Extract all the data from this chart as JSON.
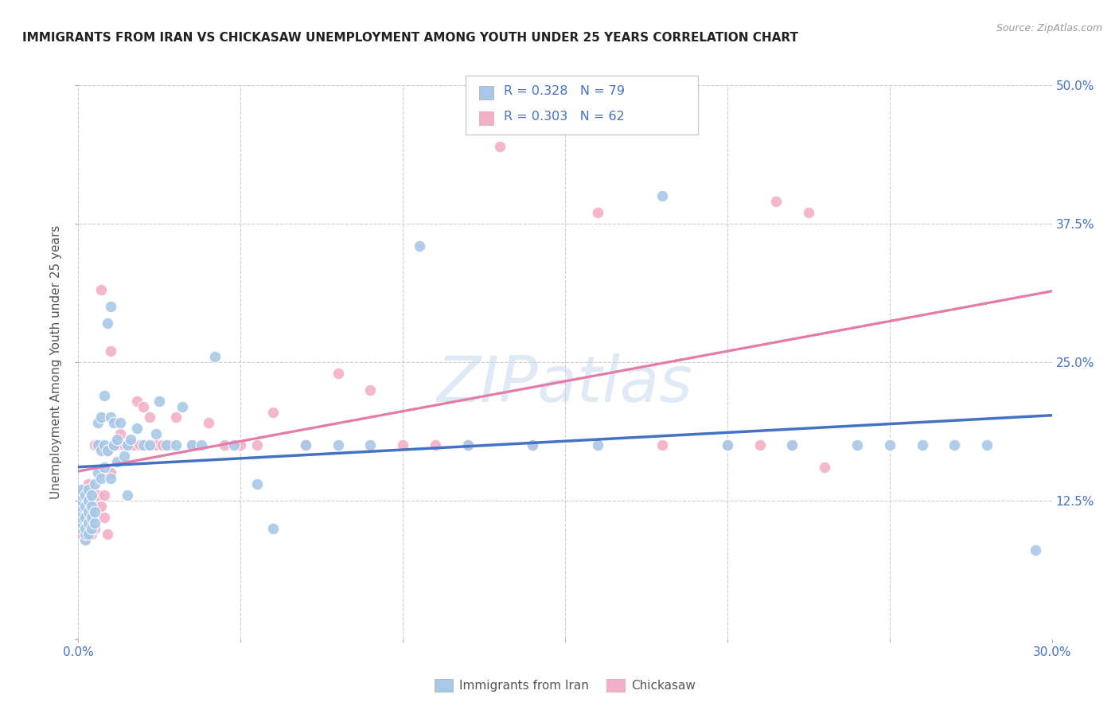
{
  "title": "IMMIGRANTS FROM IRAN VS CHICKASAW UNEMPLOYMENT AMONG YOUTH UNDER 25 YEARS CORRELATION CHART",
  "source": "Source: ZipAtlas.com",
  "ylabel": "Unemployment Among Youth under 25 years",
  "xlim": [
    0.0,
    0.3
  ],
  "ylim": [
    0.0,
    0.5
  ],
  "legend_label1": "R = 0.328   N = 79",
  "legend_label2": "R = 0.303   N = 62",
  "legend_bottom_label1": "Immigrants from Iran",
  "legend_bottom_label2": "Chickasaw",
  "color_blue": "#a8c8e8",
  "color_pink": "#f4afc8",
  "color_blue_text": "#4472c4",
  "trendline_blue": "#4472c4",
  "trendline_dashed": "#bbbbbb",
  "trendline_pink": "#e87aaa",
  "watermark": "ZIPatlas",
  "background_color": "#ffffff",
  "grid_color": "#cccccc",
  "iran_x": [
    0.001,
    0.001,
    0.001,
    0.001,
    0.001,
    0.001,
    0.001,
    0.001,
    0.002,
    0.002,
    0.002,
    0.002,
    0.002,
    0.002,
    0.003,
    0.003,
    0.003,
    0.003,
    0.003,
    0.004,
    0.004,
    0.004,
    0.004,
    0.005,
    0.005,
    0.005,
    0.006,
    0.006,
    0.006,
    0.007,
    0.007,
    0.007,
    0.008,
    0.008,
    0.008,
    0.009,
    0.009,
    0.01,
    0.01,
    0.01,
    0.011,
    0.011,
    0.012,
    0.012,
    0.013,
    0.014,
    0.015,
    0.015,
    0.016,
    0.018,
    0.02,
    0.022,
    0.024,
    0.025,
    0.027,
    0.03,
    0.032,
    0.035,
    0.038,
    0.042,
    0.048,
    0.055,
    0.06,
    0.07,
    0.08,
    0.09,
    0.105,
    0.12,
    0.14,
    0.16,
    0.18,
    0.2,
    0.22,
    0.24,
    0.25,
    0.26,
    0.27,
    0.28,
    0.295
  ],
  "iran_y": [
    0.1,
    0.105,
    0.11,
    0.115,
    0.12,
    0.125,
    0.13,
    0.135,
    0.09,
    0.095,
    0.1,
    0.11,
    0.12,
    0.13,
    0.095,
    0.105,
    0.115,
    0.125,
    0.135,
    0.1,
    0.11,
    0.12,
    0.13,
    0.105,
    0.115,
    0.14,
    0.15,
    0.175,
    0.195,
    0.145,
    0.17,
    0.2,
    0.155,
    0.175,
    0.22,
    0.17,
    0.285,
    0.145,
    0.2,
    0.3,
    0.175,
    0.195,
    0.16,
    0.18,
    0.195,
    0.165,
    0.175,
    0.13,
    0.18,
    0.19,
    0.175,
    0.175,
    0.185,
    0.215,
    0.175,
    0.175,
    0.21,
    0.175,
    0.175,
    0.255,
    0.175,
    0.14,
    0.1,
    0.175,
    0.175,
    0.175,
    0.355,
    0.175,
    0.175,
    0.175,
    0.4,
    0.175,
    0.175,
    0.175,
    0.175,
    0.175,
    0.175,
    0.175,
    0.08
  ],
  "chickasaw_x": [
    0.001,
    0.001,
    0.001,
    0.002,
    0.002,
    0.002,
    0.003,
    0.003,
    0.003,
    0.004,
    0.004,
    0.005,
    0.005,
    0.005,
    0.006,
    0.006,
    0.007,
    0.007,
    0.008,
    0.008,
    0.009,
    0.009,
    0.01,
    0.01,
    0.011,
    0.012,
    0.013,
    0.014,
    0.015,
    0.016,
    0.017,
    0.018,
    0.019,
    0.02,
    0.021,
    0.022,
    0.024,
    0.026,
    0.028,
    0.03,
    0.035,
    0.04,
    0.045,
    0.05,
    0.055,
    0.06,
    0.07,
    0.08,
    0.09,
    0.1,
    0.11,
    0.12,
    0.13,
    0.14,
    0.16,
    0.18,
    0.2,
    0.21,
    0.215,
    0.22,
    0.225,
    0.23
  ],
  "chickasaw_y": [
    0.095,
    0.11,
    0.125,
    0.09,
    0.11,
    0.13,
    0.1,
    0.12,
    0.14,
    0.095,
    0.115,
    0.1,
    0.12,
    0.175,
    0.13,
    0.175,
    0.12,
    0.315,
    0.11,
    0.13,
    0.095,
    0.17,
    0.15,
    0.26,
    0.175,
    0.175,
    0.185,
    0.175,
    0.175,
    0.175,
    0.175,
    0.215,
    0.175,
    0.21,
    0.175,
    0.2,
    0.175,
    0.175,
    0.175,
    0.2,
    0.175,
    0.195,
    0.175,
    0.175,
    0.175,
    0.205,
    0.175,
    0.24,
    0.225,
    0.175,
    0.175,
    0.175,
    0.445,
    0.175,
    0.385,
    0.175,
    0.175,
    0.175,
    0.395,
    0.175,
    0.385,
    0.155
  ]
}
